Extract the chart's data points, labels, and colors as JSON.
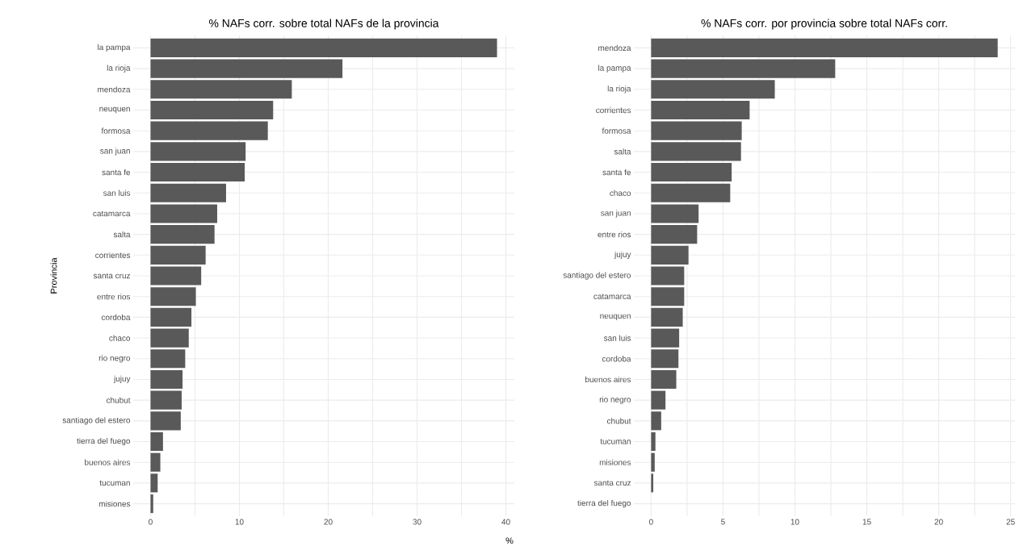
{
  "chart_data": [
    {
      "type": "bar",
      "orientation": "horizontal",
      "title": "% NAFs corr. sobre total NAFs de la provincia",
      "xlabel": "%",
      "ylabel": "Provincia",
      "categories": [
        "la pampa",
        "la rioja",
        "mendoza",
        "neuquen",
        "formosa",
        "san juan",
        "santa fe",
        "san luis",
        "catamarca",
        "salta",
        "corrientes",
        "santa cruz",
        "entre rios",
        "cordoba",
        "chaco",
        "rio negro",
        "jujuy",
        "chubut",
        "santiago del estero",
        "tierra del fuego",
        "buenos aires",
        "tucuman",
        "misiones"
      ],
      "values": [
        39.0,
        21.6,
        15.9,
        13.8,
        13.2,
        10.7,
        10.6,
        8.5,
        7.5,
        7.2,
        6.2,
        5.7,
        5.1,
        4.6,
        4.3,
        3.9,
        3.6,
        3.5,
        3.4,
        1.4,
        1.1,
        0.8,
        0.3
      ],
      "color": "#595959",
      "xlim": [
        -1.95,
        40.95
      ],
      "xticks": [
        0,
        {
          "value": 5,
          "label": null
        },
        10,
        {
          "value": 15,
          "label": null
        },
        20,
        {
          "value": 25,
          "label": null
        },
        30,
        {
          "value": 35,
          "label": null
        },
        40
      ],
      "grid": true
    },
    {
      "type": "bar",
      "orientation": "horizontal",
      "title": "% NAFs corr. por provincia sobre total NAFs corr.",
      "categories": [
        "mendoza",
        "la pampa",
        "la rioja",
        "corrientes",
        "formosa",
        "salta",
        "santa fe",
        "chaco",
        "san juan",
        "entre rios",
        "jujuy",
        "santiago del estero",
        "catamarca",
        "neuquen",
        "san luis",
        "cordoba",
        "buenos aires",
        "rio negro",
        "chubut",
        "tucuman",
        "misiones",
        "santa cruz",
        "tierra del fuego"
      ],
      "values": [
        24.1,
        12.8,
        8.6,
        6.85,
        6.3,
        6.25,
        5.6,
        5.5,
        3.3,
        3.2,
        2.6,
        2.3,
        2.3,
        2.2,
        1.95,
        1.9,
        1.75,
        1.0,
        0.7,
        0.3,
        0.25,
        0.15,
        0
      ],
      "color": "#595959",
      "xlim": [
        -1.2,
        25.3
      ],
      "xticks": [
        0,
        {
          "value": 2.5,
          "label": null
        },
        5,
        {
          "value": 7.5,
          "label": null
        },
        10,
        {
          "value": 12.5,
          "label": null
        },
        15,
        {
          "value": 17.5,
          "label": null
        },
        20,
        {
          "value": 22.5,
          "label": null
        },
        25
      ],
      "grid": true
    }
  ]
}
